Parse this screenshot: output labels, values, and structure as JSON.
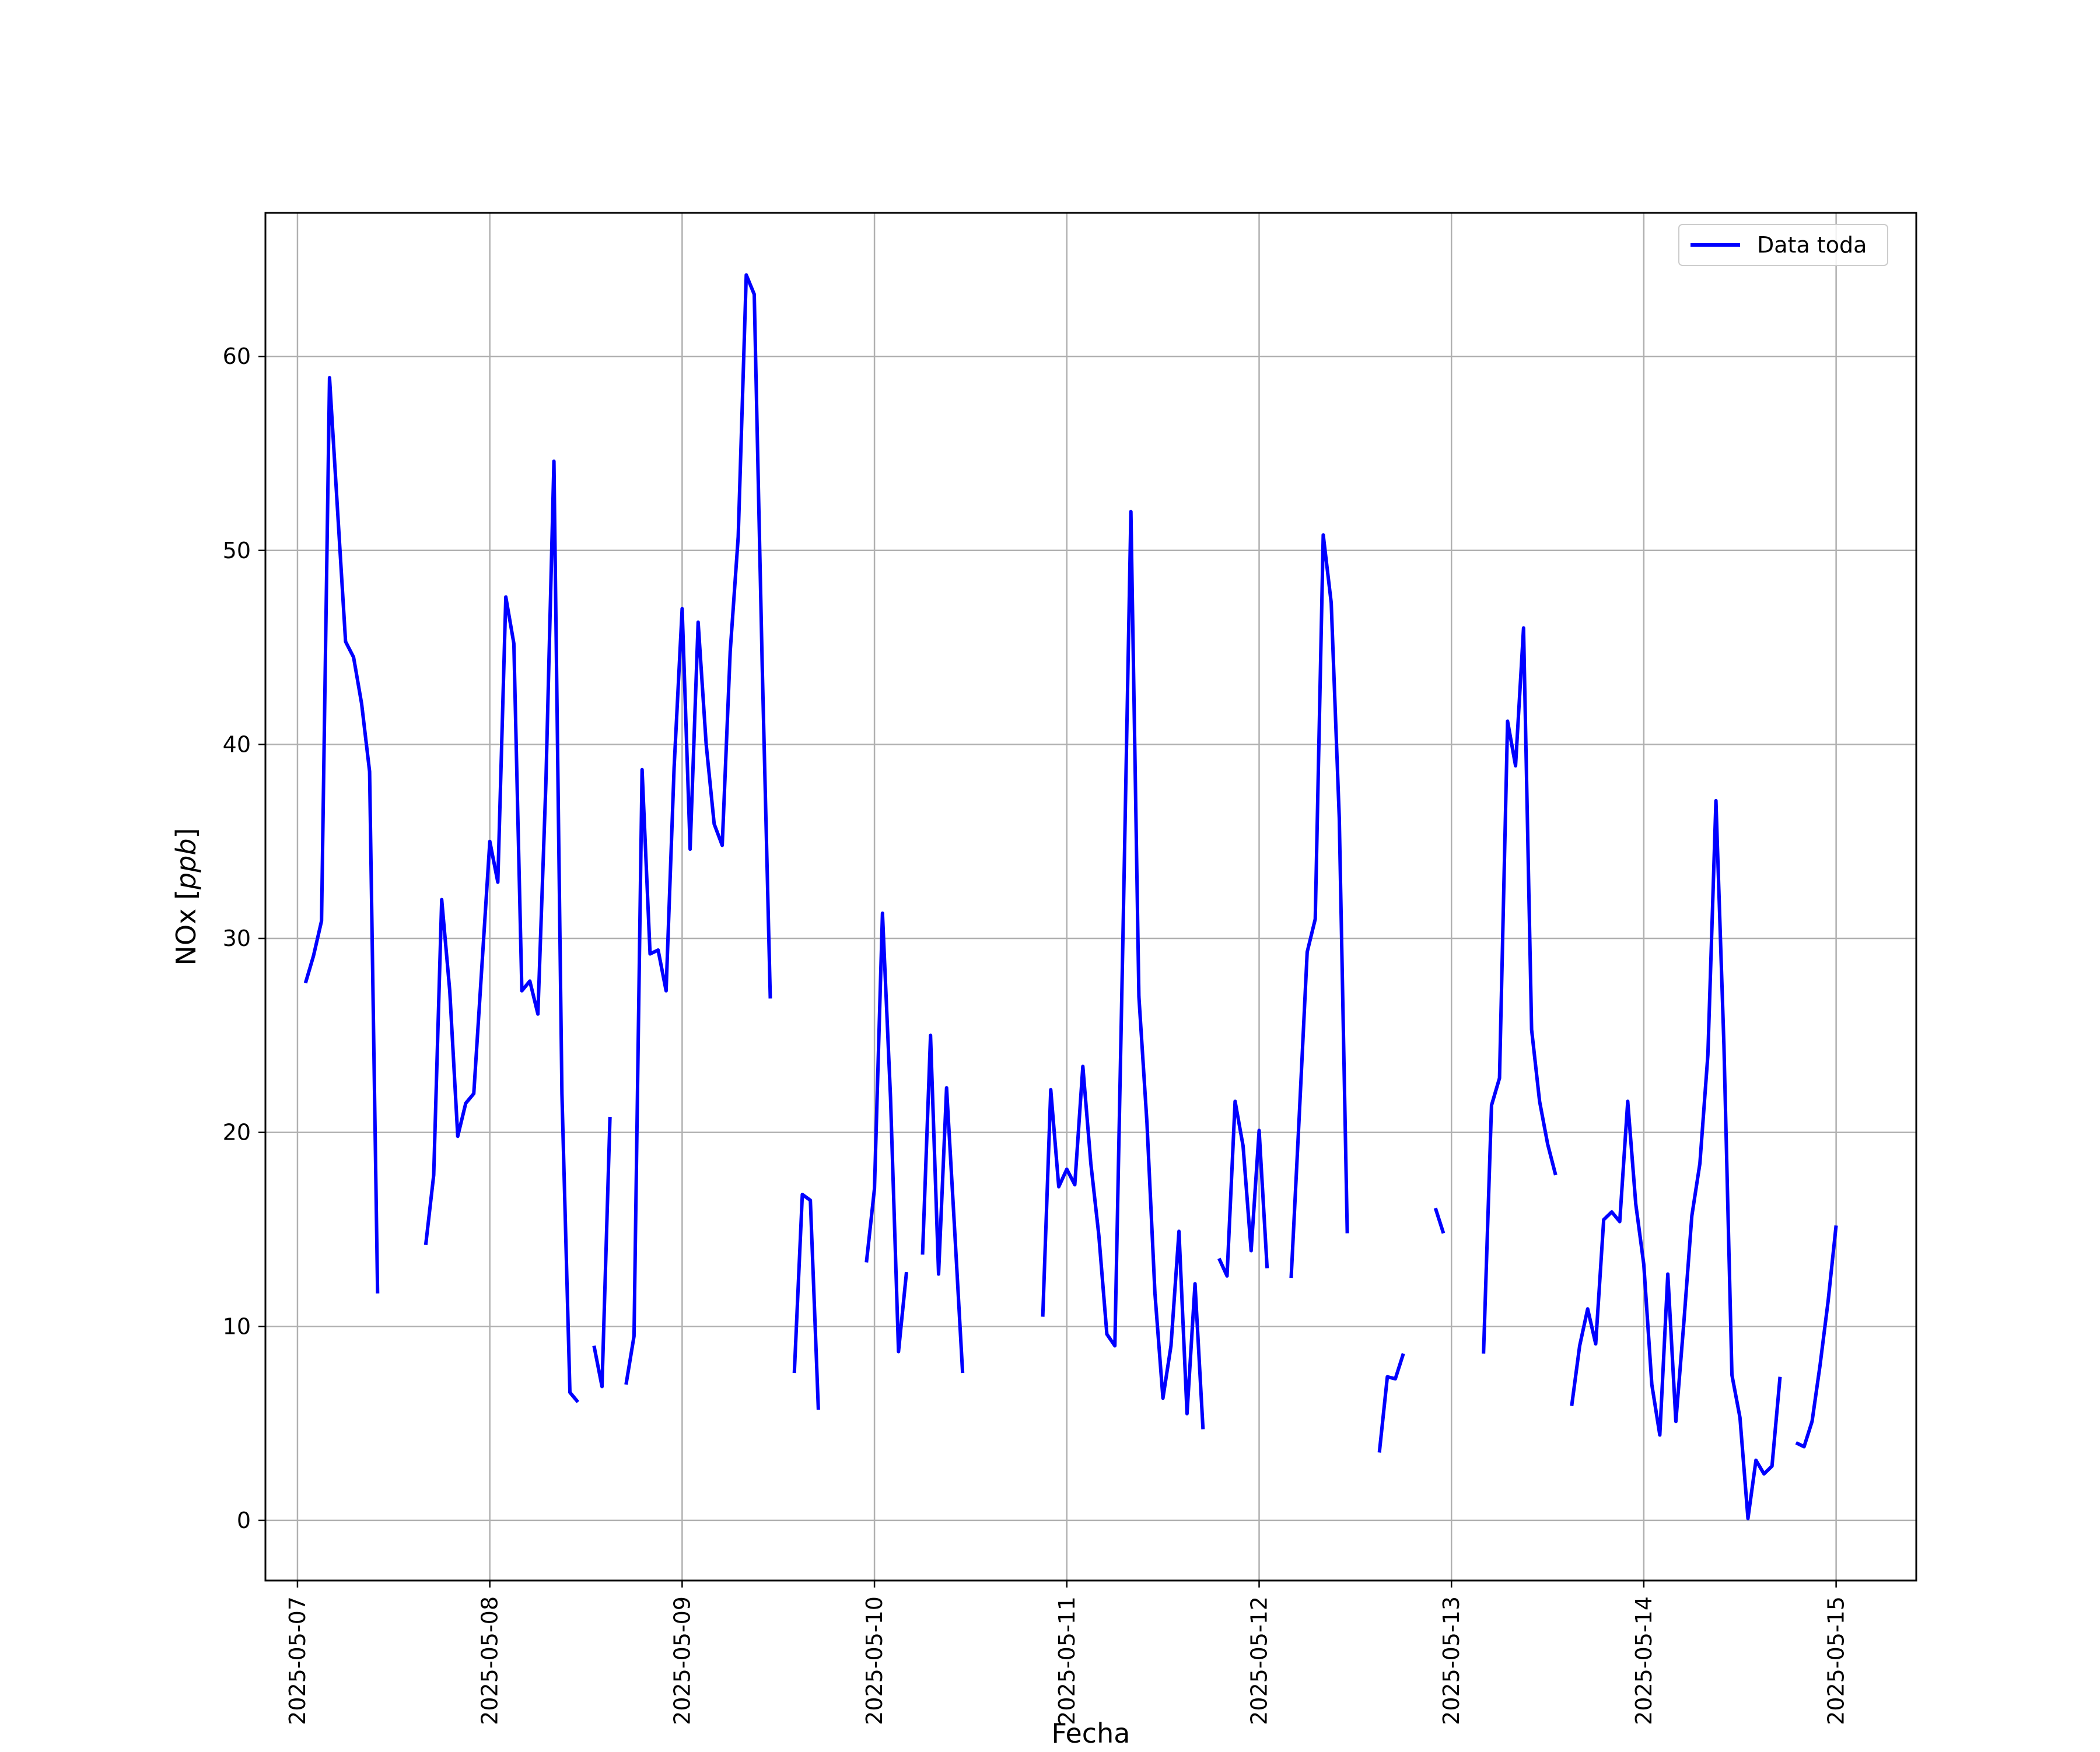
{
  "chart_data": {
    "type": "line",
    "xlabel": "Fecha",
    "ylabel": "NOx [ppb]",
    "ylabel_parts": {
      "main": "NOx ",
      "open": "[",
      "unit": "ppb",
      "close": "]"
    },
    "x_ticks": [
      "2025-05-07",
      "2025-05-08",
      "2025-05-09",
      "2025-05-10",
      "2025-05-11",
      "2025-05-12",
      "2025-05-13",
      "2025-05-14",
      "2025-05-15"
    ],
    "y_ticks": [
      0,
      10,
      20,
      30,
      40,
      50,
      60
    ],
    "xlim": [
      "2025-05-06 20:00",
      "2025-05-15 10:00"
    ],
    "ylim": [
      -3.1,
      67.4
    ],
    "grid": true,
    "legend_position": "upper right",
    "line_color": "#0000ff",
    "series": [
      {
        "name": "Data toda",
        "color": "#0000ff",
        "segments": [
          [
            [
              "2025-05-07 01:00",
              27.7
            ],
            [
              "2025-05-07 02:00",
              29.1
            ],
            [
              "2025-05-07 03:00",
              30.9
            ],
            [
              "2025-05-07 04:00",
              58.9
            ],
            [
              "2025-05-07 05:00",
              52.1
            ],
            [
              "2025-05-07 06:00",
              45.3
            ],
            [
              "2025-05-07 07:00",
              44.5
            ],
            [
              "2025-05-07 08:00",
              42.1
            ],
            [
              "2025-05-07 09:00",
              38.6
            ],
            [
              "2025-05-07 10:00",
              11.7
            ]
          ],
          [
            [
              "2025-05-07 16:00",
              14.2
            ],
            [
              "2025-05-07 17:00",
              17.8
            ],
            [
              "2025-05-07 18:00",
              32.0
            ],
            [
              "2025-05-07 19:00",
              27.3
            ],
            [
              "2025-05-07 20:00",
              19.8
            ],
            [
              "2025-05-07 21:00",
              21.5
            ],
            [
              "2025-05-07 22:00",
              22.0
            ],
            [
              "2025-05-08 00:00",
              35.0
            ],
            [
              "2025-05-08 01:00",
              32.9
            ],
            [
              "2025-05-08 02:00",
              47.6
            ],
            [
              "2025-05-08 03:00",
              45.2
            ],
            [
              "2025-05-08 04:00",
              27.3
            ],
            [
              "2025-05-08 05:00",
              27.8
            ],
            [
              "2025-05-08 06:00",
              26.1
            ],
            [
              "2025-05-08 07:00",
              38.0
            ],
            [
              "2025-05-08 08:00",
              54.6
            ],
            [
              "2025-05-08 09:00",
              22.0
            ],
            [
              "2025-05-08 10:00",
              6.6
            ],
            [
              "2025-05-08 11:00",
              6.1
            ]
          ],
          [
            [
              "2025-05-08 13:00",
              9.0
            ],
            [
              "2025-05-08 14:00",
              6.9
            ],
            [
              "2025-05-08 15:00",
              20.8
            ]
          ],
          [
            [
              "2025-05-08 17:00",
              7.0
            ],
            [
              "2025-05-08 18:00",
              9.5
            ],
            [
              "2025-05-08 19:00",
              38.7
            ],
            [
              "2025-05-08 20:00",
              29.2
            ],
            [
              "2025-05-08 21:00",
              29.4
            ],
            [
              "2025-05-08 22:00",
              27.3
            ],
            [
              "2025-05-08 23:00",
              38.8
            ],
            [
              "2025-05-09 00:00",
              47.0
            ],
            [
              "2025-05-09 01:00",
              34.6
            ],
            [
              "2025-05-09 02:00",
              46.3
            ],
            [
              "2025-05-09 03:00",
              40.0
            ],
            [
              "2025-05-09 04:00",
              35.9
            ],
            [
              "2025-05-09 05:00",
              34.8
            ],
            [
              "2025-05-09 06:00",
              44.8
            ],
            [
              "2025-05-09 07:00",
              50.7
            ],
            [
              "2025-05-09 08:00",
              64.2
            ],
            [
              "2025-05-09 09:00",
              63.2
            ],
            [
              "2025-05-09 10:00",
              44.0
            ],
            [
              "2025-05-09 11:00",
              26.9
            ]
          ],
          [
            [
              "2025-05-09 14:00",
              7.6
            ],
            [
              "2025-05-09 15:00",
              16.8
            ],
            [
              "2025-05-09 16:00",
              16.5
            ],
            [
              "2025-05-09 17:00",
              5.7
            ]
          ],
          [
            [
              "2025-05-09 23:00",
              13.3
            ],
            [
              "2025-05-10 00:00",
              17.1
            ],
            [
              "2025-05-10 01:00",
              31.3
            ],
            [
              "2025-05-10 02:00",
              21.8
            ],
            [
              "2025-05-10 03:00",
              8.7
            ],
            [
              "2025-05-10 04:00",
              12.8
            ]
          ],
          [
            [
              "2025-05-10 06:00",
              13.7
            ],
            [
              "2025-05-10 07:00",
              25.0
            ],
            [
              "2025-05-10 08:00",
              12.7
            ],
            [
              "2025-05-10 09:00",
              22.3
            ],
            [
              "2025-05-10 10:00",
              15.0
            ],
            [
              "2025-05-10 11:00",
              7.6
            ]
          ],
          [
            [
              "2025-05-10 21:00",
              10.5
            ],
            [
              "2025-05-10 22:00",
              22.2
            ],
            [
              "2025-05-10 23:00",
              17.2
            ],
            [
              "2025-05-11 00:00",
              18.1
            ],
            [
              "2025-05-11 01:00",
              17.3
            ],
            [
              "2025-05-11 02:00",
              23.4
            ],
            [
              "2025-05-11 03:00",
              18.4
            ],
            [
              "2025-05-11 04:00",
              14.7
            ],
            [
              "2025-05-11 05:00",
              9.6
            ],
            [
              "2025-05-11 06:00",
              9.0
            ],
            [
              "2025-05-11 07:00",
              30.0
            ],
            [
              "2025-05-11 08:00",
              52.0
            ],
            [
              "2025-05-11 09:00",
              27.0
            ],
            [
              "2025-05-11 10:00",
              20.5
            ],
            [
              "2025-05-11 11:00",
              11.7
            ],
            [
              "2025-05-11 12:00",
              6.3
            ],
            [
              "2025-05-11 13:00",
              9.0
            ],
            [
              "2025-05-11 14:00",
              14.9
            ],
            [
              "2025-05-11 15:00",
              5.5
            ],
            [
              "2025-05-11 16:00",
              12.2
            ],
            [
              "2025-05-11 17:00",
              4.7
            ]
          ],
          [
            [
              "2025-05-11 19:00",
              13.5
            ],
            [
              "2025-05-11 20:00",
              12.6
            ],
            [
              "2025-05-11 21:00",
              21.6
            ],
            [
              "2025-05-11 22:00",
              19.3
            ],
            [
              "2025-05-11 23:00",
              13.9
            ],
            [
              "2025-05-12 00:00",
              20.1
            ],
            [
              "2025-05-12 01:00",
              13.0
            ]
          ],
          [
            [
              "2025-05-12 04:00",
              12.5
            ],
            [
              "2025-05-12 05:00",
              20.8
            ],
            [
              "2025-05-12 06:00",
              29.3
            ],
            [
              "2025-05-12 07:00",
              31.0
            ],
            [
              "2025-05-12 08:00",
              50.8
            ],
            [
              "2025-05-12 09:00",
              47.3
            ],
            [
              "2025-05-12 10:00",
              36.2
            ],
            [
              "2025-05-12 11:00",
              14.8
            ]
          ],
          [
            [
              "2025-05-12 15:00",
              3.5
            ],
            [
              "2025-05-12 16:00",
              7.4
            ],
            [
              "2025-05-12 17:00",
              7.3
            ],
            [
              "2025-05-12 18:00",
              8.6
            ]
          ],
          [
            [
              "2025-05-12 22:00",
              16.1
            ],
            [
              "2025-05-12 23:00",
              14.8
            ]
          ],
          [
            [
              "2025-05-13 04:00",
              8.6
            ],
            [
              "2025-05-13 05:00",
              21.4
            ],
            [
              "2025-05-13 06:00",
              22.8
            ],
            [
              "2025-05-13 07:00",
              41.2
            ],
            [
              "2025-05-13 08:00",
              38.9
            ],
            [
              "2025-05-13 09:00",
              46.0
            ],
            [
              "2025-05-13 10:00",
              25.3
            ],
            [
              "2025-05-13 11:00",
              21.6
            ],
            [
              "2025-05-13 12:00",
              19.4
            ],
            [
              "2025-05-13 13:00",
              17.8
            ]
          ],
          [
            [
              "2025-05-13 15:00",
              5.9
            ],
            [
              "2025-05-13 16:00",
              9.0
            ],
            [
              "2025-05-13 17:00",
              10.9
            ],
            [
              "2025-05-13 18:00",
              9.1
            ],
            [
              "2025-05-13 19:00",
              15.5
            ],
            [
              "2025-05-13 20:00",
              15.9
            ],
            [
              "2025-05-13 21:00",
              15.4
            ],
            [
              "2025-05-13 22:00",
              21.6
            ],
            [
              "2025-05-13 23:00",
              16.3
            ],
            [
              "2025-05-14 00:00",
              13.2
            ],
            [
              "2025-05-14 01:00",
              7.0
            ],
            [
              "2025-05-14 02:00",
              4.4
            ],
            [
              "2025-05-14 03:00",
              12.7
            ],
            [
              "2025-05-14 04:00",
              5.1
            ],
            [
              "2025-05-14 05:00",
              10.2
            ],
            [
              "2025-05-14 06:00",
              15.7
            ],
            [
              "2025-05-14 07:00",
              18.4
            ],
            [
              "2025-05-14 08:00",
              24.0
            ],
            [
              "2025-05-14 09:00",
              37.1
            ],
            [
              "2025-05-14 10:00",
              24.5
            ],
            [
              "2025-05-14 11:00",
              7.5
            ],
            [
              "2025-05-14 12:00",
              5.3
            ],
            [
              "2025-05-14 13:00",
              0.1
            ],
            [
              "2025-05-14 14:00",
              3.1
            ],
            [
              "2025-05-14 15:00",
              2.4
            ],
            [
              "2025-05-14 16:00",
              2.8
            ],
            [
              "2025-05-14 17:00",
              7.4
            ]
          ],
          [
            [
              "2025-05-14 19:00",
              4.0
            ],
            [
              "2025-05-14 20:00",
              3.8
            ],
            [
              "2025-05-14 21:00",
              5.1
            ],
            [
              "2025-05-14 22:00",
              8.0
            ],
            [
              "2025-05-14 23:00",
              11.3
            ],
            [
              "2025-05-15 00:00",
              15.2
            ]
          ]
        ]
      }
    ]
  }
}
